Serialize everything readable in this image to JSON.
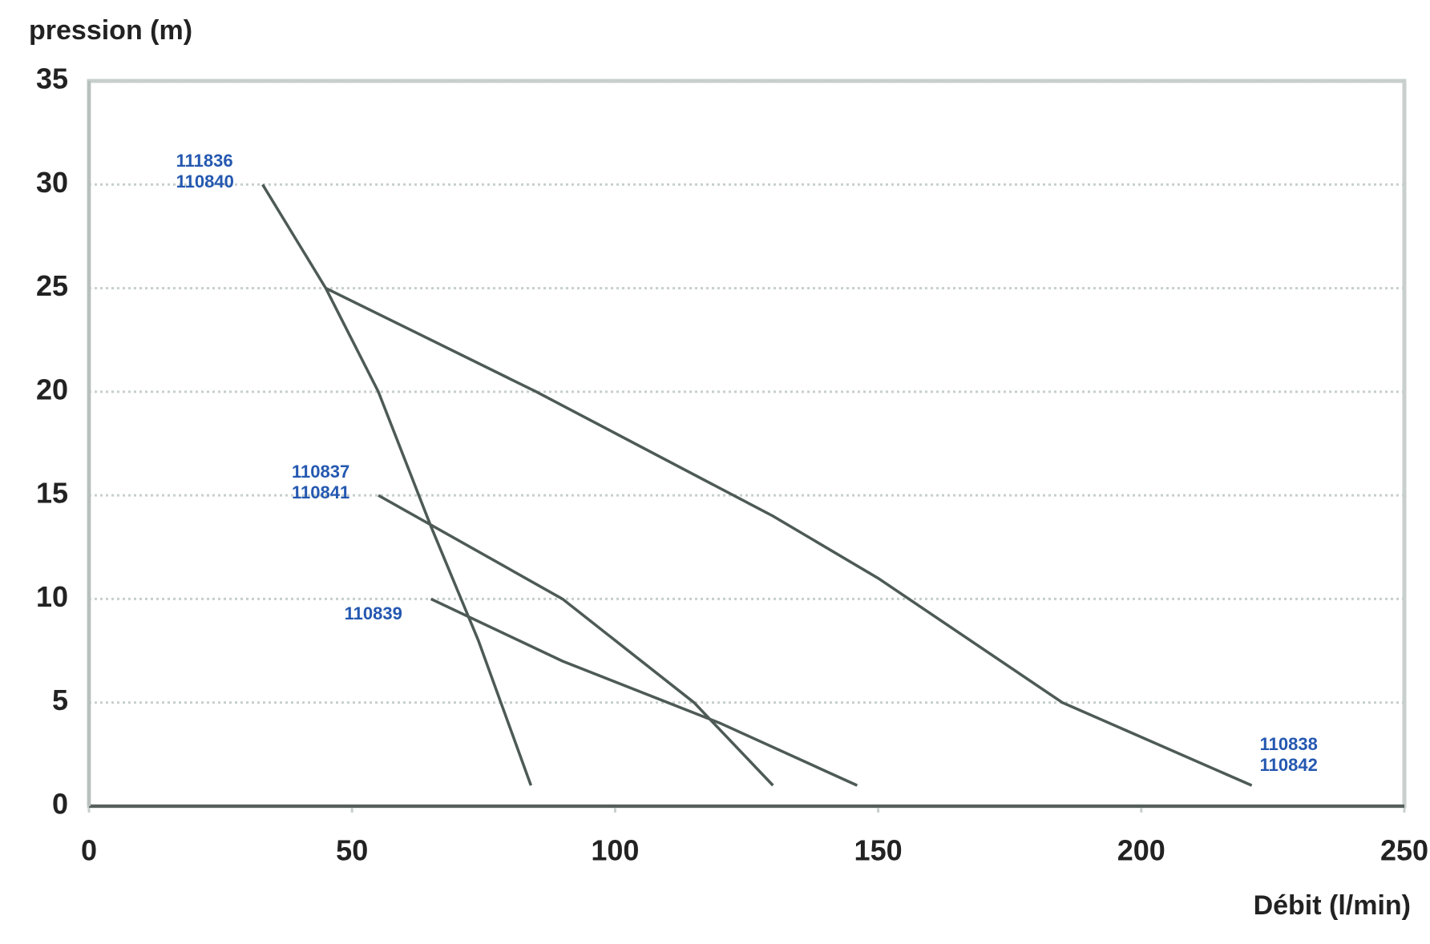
{
  "chart_data": {
    "type": "line",
    "y_label": "pression (m)",
    "x_label": "Débit (l/min)",
    "xlim": [
      0,
      250
    ],
    "xticks": [
      0,
      50,
      100,
      150,
      200,
      250
    ],
    "ylim": [
      0,
      35
    ],
    "yticks": [
      0,
      5,
      10,
      15,
      20,
      25,
      30,
      35
    ],
    "grid": true,
    "color": "#4d5a56",
    "label_color": "#2458b0",
    "series": [
      {
        "labels": [
          "111836",
          "110840"
        ],
        "x": [
          33,
          45,
          55,
          65,
          74,
          84
        ],
        "values": [
          30,
          25,
          20,
          13.5,
          8,
          1
        ]
      },
      {
        "labels": [
          "110838",
          "110842"
        ],
        "x": [
          45,
          85,
          130,
          150,
          185,
          221
        ],
        "values": [
          25,
          20,
          14,
          11,
          5,
          1
        ]
      },
      {
        "labels": [
          "110837",
          "110841"
        ],
        "x": [
          55,
          90,
          115,
          130
        ],
        "values": [
          15,
          10,
          5,
          1
        ]
      },
      {
        "labels": [
          "110839"
        ],
        "x": [
          65,
          90,
          120,
          146
        ],
        "values": [
          10,
          7,
          4,
          1
        ]
      }
    ]
  }
}
